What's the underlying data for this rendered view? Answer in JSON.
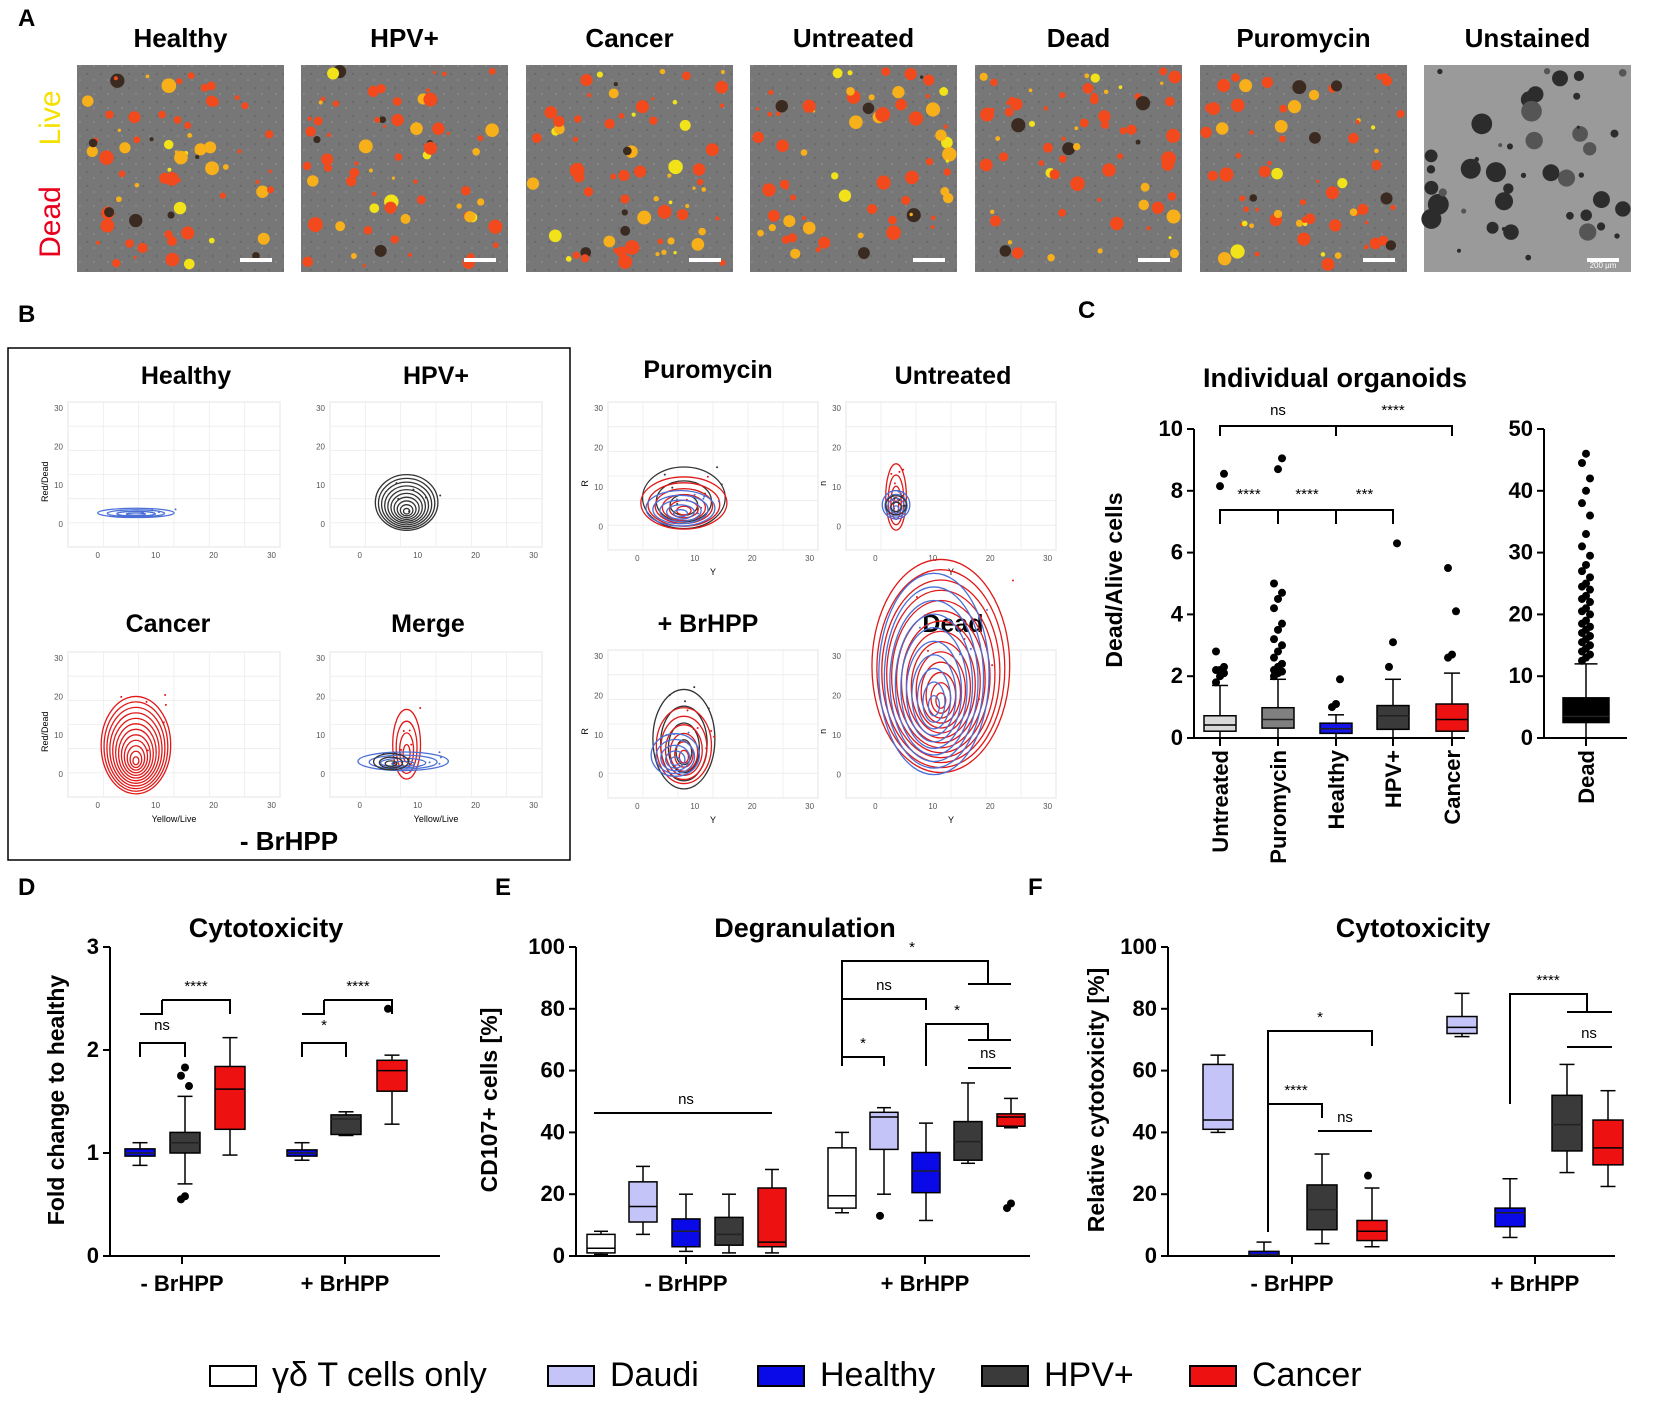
{
  "panel_letters": {
    "a": "A",
    "b": "B",
    "c": "C",
    "d": "D",
    "e": "E",
    "f": "F"
  },
  "panel_a": {
    "titles": [
      "Healthy",
      "HPV+",
      "Cancer",
      "Untreated",
      "Dead",
      "Puromycin",
      "Unstained"
    ],
    "side_live": "Live",
    "side_dead": "Dead",
    "scale_text": "200 µm",
    "colors": {
      "live": "#f5e000",
      "dead": "#e8001c"
    }
  },
  "panel_b": {
    "titles_left": [
      "Healthy",
      "HPV+",
      "Cancer",
      "Merge"
    ],
    "titles_right": [
      "Puromycin",
      "Untreated",
      "+ BrHPP",
      "Dead"
    ],
    "box_label": "- BrHPP",
    "ylab_left": "Red/Dead",
    "xlab_left": "Yellow/Live",
    "ylab_right": "R",
    "ylab_right_alt": "n",
    "xlab_right": "Y",
    "ticks": [
      "0",
      "10",
      "20",
      "30"
    ]
  },
  "chart_data": [
    {
      "id": "C",
      "type": "box",
      "title": "Individual organoids",
      "ylabel": "Dead/Alive cells",
      "ylim": [
        0,
        10
      ],
      "yticks": [
        "0",
        "2",
        "4",
        "6",
        "8",
        "10"
      ],
      "categories": [
        "Untreated",
        "Puromycin",
        "Healthy",
        "HPV+",
        "Cancer"
      ],
      "boxes": [
        {
          "name": "Untreated",
          "min": 0,
          "q1": 0.22,
          "median": 0.42,
          "q3": 0.72,
          "max": 1.7,
          "color": "#d9d9d9",
          "outliers": [
            1.8,
            2.0,
            2.1,
            2.2,
            2.2,
            2.3,
            2.8,
            8.15,
            8.55
          ]
        },
        {
          "name": "Puromycin",
          "min": 0,
          "q1": 0.32,
          "median": 0.6,
          "q3": 0.98,
          "max": 1.9,
          "color": "#808080",
          "outliers": [
            2.0,
            2.1,
            2.15,
            2.2,
            2.3,
            2.4,
            2.6,
            2.8,
            3.0,
            3.2,
            3.5,
            3.7,
            4.2,
            4.5,
            4.7,
            5.0,
            8.7,
            9.05
          ]
        },
        {
          "name": "Healthy",
          "min": 0,
          "q1": 0.15,
          "median": 0.3,
          "q3": 0.48,
          "max": 0.75,
          "color": "#1414e6",
          "outliers": [
            1.0,
            1.1,
            1.9
          ]
        },
        {
          "name": "HPV+",
          "min": 0,
          "q1": 0.28,
          "median": 0.72,
          "q3": 1.05,
          "max": 1.9,
          "color": "#3a3a3a",
          "outliers": [
            2.3,
            3.1,
            6.3
          ]
        },
        {
          "name": "Cancer",
          "min": 0,
          "q1": 0.22,
          "median": 0.6,
          "q3": 1.1,
          "max": 2.1,
          "color": "#ee1111",
          "outliers": [
            2.6,
            2.7,
            4.1,
            5.5
          ]
        }
      ],
      "significance": [
        {
          "label": "ns",
          "from": "Untreated",
          "to": "Healthy"
        },
        {
          "label": "****",
          "from": "Healthy",
          "to": "Cancer"
        },
        {
          "label": "****",
          "from": "Untreated",
          "to": "Puromycin"
        },
        {
          "label": "****",
          "from": "Puromycin",
          "to": "Healthy"
        },
        {
          "label": "***",
          "from": "Healthy",
          "to": "HPV+"
        }
      ]
    },
    {
      "id": "C-dead",
      "type": "box",
      "ylim": [
        0,
        50
      ],
      "yticks": [
        "0",
        "10",
        "20",
        "30",
        "40",
        "50"
      ],
      "categories": [
        "Dead"
      ],
      "boxes": [
        {
          "name": "Dead",
          "min": 0,
          "q1": 2.5,
          "median": 3.5,
          "q3": 6.5,
          "max": 12,
          "color": "#000000",
          "outliers": [
            12.5,
            13,
            13.5,
            14,
            14.5,
            15,
            15.5,
            16,
            16.5,
            17,
            17.5,
            18,
            18.5,
            19,
            20,
            20.5,
            21,
            22,
            22.5,
            23,
            24,
            24.5,
            25,
            26,
            27,
            28,
            29.5,
            31,
            33,
            36,
            38,
            40,
            42,
            44.5,
            46
          ]
        }
      ]
    },
    {
      "id": "D",
      "type": "box",
      "title": "Cytotoxicity",
      "ylabel": "Fold change to healthy",
      "ylim": [
        0,
        3
      ],
      "yticks": [
        "0",
        "1",
        "2",
        "3"
      ],
      "group_labels": [
        "- BrHPP",
        "+ BrHPP"
      ],
      "groups": [
        {
          "name": "- BrHPP",
          "boxes": [
            {
              "series": "Healthy",
              "min": 0.88,
              "q1": 0.97,
              "median": 1.0,
              "q3": 1.04,
              "max": 1.1,
              "outliers": []
            },
            {
              "series": "HPV+",
              "min": 0.7,
              "q1": 1.0,
              "median": 1.1,
              "q3": 1.2,
              "max": 1.55,
              "outliers": [
                0.55,
                0.58,
                1.65,
                1.75,
                1.83
              ]
            },
            {
              "series": "Cancer",
              "min": 0.98,
              "q1": 1.23,
              "median": 1.62,
              "q3": 1.84,
              "max": 2.12,
              "outliers": []
            }
          ]
        },
        {
          "name": "+ BrHPP",
          "boxes": [
            {
              "series": "Healthy",
              "min": 0.93,
              "q1": 0.97,
              "median": 1.0,
              "q3": 1.03,
              "max": 1.1,
              "outliers": []
            },
            {
              "series": "HPV+",
              "min": 1.17,
              "q1": 1.18,
              "median": 1.33,
              "q3": 1.37,
              "max": 1.4,
              "outliers": []
            },
            {
              "series": "Cancer",
              "min": 1.28,
              "q1": 1.6,
              "median": 1.8,
              "q3": 1.9,
              "max": 1.95,
              "outliers": [
                2.4
              ]
            }
          ]
        }
      ],
      "significance": [
        "****",
        "ns",
        "****",
        "*"
      ]
    },
    {
      "id": "E",
      "type": "box",
      "title": "Degranulation",
      "ylabel": "CD107+ cells [%]",
      "ylim": [
        0,
        100
      ],
      "yticks": [
        "0",
        "20",
        "40",
        "60",
        "80",
        "100"
      ],
      "group_labels": [
        "- BrHPP",
        "+ BrHPP"
      ],
      "groups": [
        {
          "name": "- BrHPP",
          "boxes": [
            {
              "series": "γδ T cells only",
              "min": 0.5,
              "q1": 1,
              "median": 2.5,
              "q3": 7,
              "max": 8,
              "outliers": []
            },
            {
              "series": "Daudi",
              "min": 7,
              "q1": 11,
              "median": 16,
              "q3": 24,
              "max": 29,
              "outliers": []
            },
            {
              "series": "Healthy",
              "min": 1.5,
              "q1": 3,
              "median": 8,
              "q3": 12,
              "max": 20,
              "outliers": []
            },
            {
              "series": "HPV+",
              "min": 1,
              "q1": 3.5,
              "median": 7,
              "q3": 12.5,
              "max": 20,
              "outliers": []
            },
            {
              "series": "Cancer",
              "min": 1,
              "q1": 3,
              "median": 4.5,
              "q3": 22,
              "max": 28,
              "outliers": []
            }
          ]
        },
        {
          "name": "+ BrHPP",
          "boxes": [
            {
              "series": "γδ T cells only",
              "min": 14,
              "q1": 15.5,
              "median": 19.5,
              "q3": 35,
              "max": 40,
              "outliers": []
            },
            {
              "series": "Daudi",
              "min": 20,
              "q1": 34.5,
              "median": 45,
              "q3": 46.5,
              "max": 48,
              "outliers": [
                13
              ]
            },
            {
              "series": "Healthy",
              "min": 11.5,
              "q1": 20.5,
              "median": 27.5,
              "q3": 33.5,
              "max": 43,
              "outliers": []
            },
            {
              "series": "HPV+",
              "min": 30,
              "q1": 31,
              "median": 37,
              "q3": 43.5,
              "max": 56,
              "outliers": []
            },
            {
              "series": "Cancer",
              "min": 41.5,
              "q1": 42,
              "median": 45,
              "q3": 46,
              "max": 51,
              "outliers": [
                15.5,
                17
              ]
            }
          ]
        }
      ],
      "significance": [
        "ns",
        "*",
        "ns",
        "*",
        "*",
        "ns"
      ]
    },
    {
      "id": "F",
      "type": "box",
      "title": "Cytotoxicity",
      "ylabel": "Relative cytotoxicity [%]",
      "ylim": [
        0,
        100
      ],
      "yticks": [
        "0",
        "20",
        "40",
        "60",
        "80",
        "100"
      ],
      "group_labels": [
        "- BrHPP",
        "+ BrHPP"
      ],
      "groups": [
        {
          "name": "- BrHPP",
          "boxes": [
            {
              "series": "Daudi",
              "min": 40,
              "q1": 41,
              "median": 44,
              "q3": 62,
              "max": 65,
              "outliers": []
            },
            {
              "series": "Healthy",
              "min": 0,
              "q1": 0,
              "median": 0.5,
              "q3": 1.5,
              "max": 4.5,
              "outliers": []
            },
            {
              "series": "HPV+",
              "min": 4,
              "q1": 8.5,
              "median": 15,
              "q3": 23,
              "max": 33,
              "outliers": []
            },
            {
              "series": "Cancer",
              "min": 3,
              "q1": 5,
              "median": 8,
              "q3": 11.5,
              "max": 22,
              "outliers": [
                26
              ]
            }
          ]
        },
        {
          "name": "+ BrHPP",
          "boxes": [
            {
              "series": "Daudi",
              "min": 71,
              "q1": 72,
              "median": 74,
              "q3": 77.5,
              "max": 85,
              "outliers": []
            },
            {
              "series": "Healthy",
              "min": 6,
              "q1": 9.5,
              "median": 14,
              "q3": 15.5,
              "max": 25,
              "outliers": []
            },
            {
              "series": "HPV+",
              "min": 27,
              "q1": 34,
              "median": 42.5,
              "q3": 52,
              "max": 62,
              "outliers": []
            },
            {
              "series": "Cancer",
              "min": 22.5,
              "q1": 29.5,
              "median": 35,
              "q3": 44,
              "max": 53.5,
              "outliers": []
            }
          ]
        }
      ],
      "significance": [
        "*",
        "****",
        "ns",
        "****",
        "ns"
      ]
    }
  ],
  "legend": [
    {
      "label": "γδ T cells only",
      "color": "#ffffff"
    },
    {
      "label": "Daudi",
      "color": "#c4c4f8"
    },
    {
      "label": "Healthy",
      "color": "#0a0ae8"
    },
    {
      "label": "HPV+",
      "color": "#3a3a3a"
    },
    {
      "label": "Cancer",
      "color": "#ee1111"
    }
  ]
}
